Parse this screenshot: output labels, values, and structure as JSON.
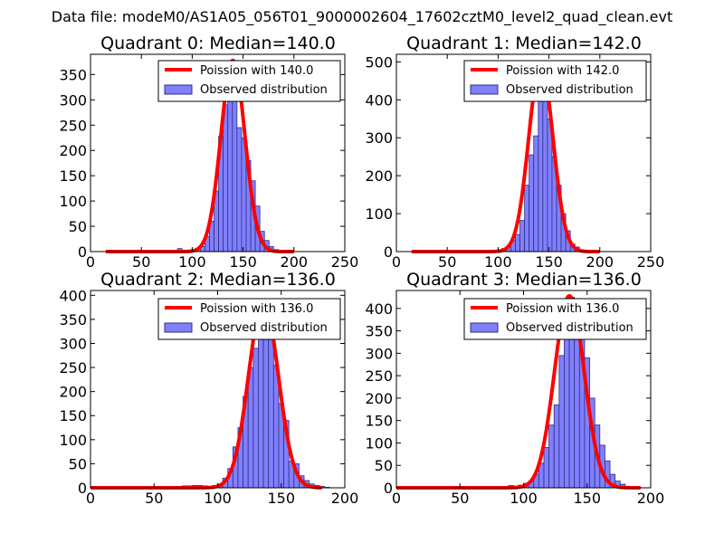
{
  "figure": {
    "suptitle": "Data file: modeM0/AS1A05_056T01_9000002604_17602cztM0_level2_quad_clean.evt"
  },
  "colors": {
    "bar_fill": "#8080ff",
    "bar_edge": "#2e2e80",
    "curve": "#ff0000",
    "axis": "#000000"
  },
  "chart_data": [
    {
      "type": "bar",
      "title": "Quadrant 0: Median=140.0",
      "xlim": [
        0,
        250
      ],
      "ylim": [
        0,
        390
      ],
      "xticks": [
        0,
        50,
        100,
        150,
        200,
        250
      ],
      "yticks": [
        0,
        50,
        100,
        150,
        200,
        250,
        300,
        350
      ],
      "legend": {
        "location": "top-right",
        "curve_label": "Poission with 140.0",
        "bar_label": "Observed distribution"
      },
      "histogram": {
        "bin_width": 4.5,
        "x": [
          81,
          85.5,
          90,
          94.5,
          99,
          103.5,
          108,
          112.5,
          117,
          121.5,
          126,
          130.5,
          135,
          139.5,
          144,
          148.5,
          153,
          157.5,
          162,
          166.5,
          171,
          175.5,
          180,
          184.5,
          189
        ],
        "values": [
          2,
          6,
          3,
          2,
          4,
          6,
          10,
          30,
          60,
          120,
          228,
          290,
          345,
          310,
          245,
          225,
          180,
          140,
          90,
          40,
          22,
          10,
          4,
          2,
          1
        ]
      },
      "poisson": {
        "mean": 140,
        "scale": 378,
        "x_range": [
          15,
          200
        ]
      }
    },
    {
      "type": "bar",
      "title": "Quadrant 1: Median=142.0",
      "xlim": [
        0,
        250
      ],
      "ylim": [
        0,
        520
      ],
      "xticks": [
        0,
        50,
        100,
        150,
        200,
        250
      ],
      "yticks": [
        0,
        100,
        200,
        300,
        400,
        500
      ],
      "legend": {
        "location": "top-right",
        "curve_label": "Poission with 142.0",
        "bar_label": "Observed distribution"
      },
      "histogram": {
        "bin_width": 4.5,
        "x": [
          90,
          94.5,
          99,
          103.5,
          108,
          112.5,
          117,
          121.5,
          126,
          130.5,
          135,
          139.5,
          144,
          148.5,
          153,
          157.5,
          162,
          166.5,
          171,
          175.5,
          180,
          184.5,
          189
        ],
        "values": [
          4,
          2,
          5,
          8,
          14,
          30,
          45,
          82,
          175,
          255,
          305,
          470,
          400,
          350,
          250,
          175,
          100,
          55,
          20,
          12,
          5,
          2,
          1
        ]
      },
      "poisson": {
        "mean": 142,
        "scale": 495,
        "x_range": [
          15,
          200
        ]
      }
    },
    {
      "type": "bar",
      "title": "Quadrant 2: Median=136.0",
      "xlim": [
        0,
        200
      ],
      "ylim": [
        0,
        410
      ],
      "xticks": [
        0,
        50,
        100,
        150,
        200
      ],
      "yticks": [
        0,
        50,
        100,
        150,
        200,
        250,
        300,
        350,
        400
      ],
      "legend": {
        "location": "top-right",
        "curve_label": "Poission with 136.0",
        "bar_label": "Observed distribution"
      },
      "histogram": {
        "bin_width": 4,
        "x": [
          72,
          76,
          80,
          84,
          88,
          92,
          96,
          100,
          104,
          108,
          112,
          116,
          120,
          124,
          128,
          132,
          136,
          140,
          144,
          148,
          152,
          156,
          160,
          164,
          168,
          172,
          176,
          180,
          184
        ],
        "values": [
          4,
          4,
          5,
          5,
          4,
          3,
          5,
          8,
          20,
          40,
          85,
          125,
          190,
          250,
          290,
          310,
          360,
          310,
          255,
          175,
          140,
          55,
          50,
          25,
          15,
          8,
          5,
          3,
          1
        ]
      },
      "poisson": {
        "mean": 136,
        "scale": 388,
        "x_range": [
          0,
          182
        ]
      }
    },
    {
      "type": "bar",
      "title": "Quadrant 3: Median=136.0",
      "xlim": [
        0,
        200
      ],
      "ylim": [
        0,
        440
      ],
      "xticks": [
        0,
        50,
        100,
        150,
        200
      ],
      "yticks": [
        0,
        50,
        100,
        150,
        200,
        250,
        300,
        350,
        400
      ],
      "legend": {
        "location": "top-right",
        "curve_label": "Poission with 136.0",
        "bar_label": "Observed distribution"
      },
      "histogram": {
        "bin_width": 4,
        "x": [
          80,
          84,
          88,
          92,
          96,
          100,
          104,
          108,
          112,
          116,
          120,
          124,
          128,
          132,
          136,
          140,
          144,
          148,
          152,
          156,
          160,
          164,
          168,
          172,
          176,
          180,
          184,
          188
        ],
        "values": [
          2,
          3,
          5,
          4,
          6,
          10,
          15,
          30,
          55,
          90,
          140,
          185,
          295,
          350,
          425,
          395,
          340,
          290,
          200,
          140,
          95,
          60,
          30,
          15,
          8,
          3,
          2,
          1
        ]
      },
      "poisson": {
        "mean": 136,
        "scale": 428,
        "x_range": [
          0,
          192
        ]
      }
    }
  ]
}
